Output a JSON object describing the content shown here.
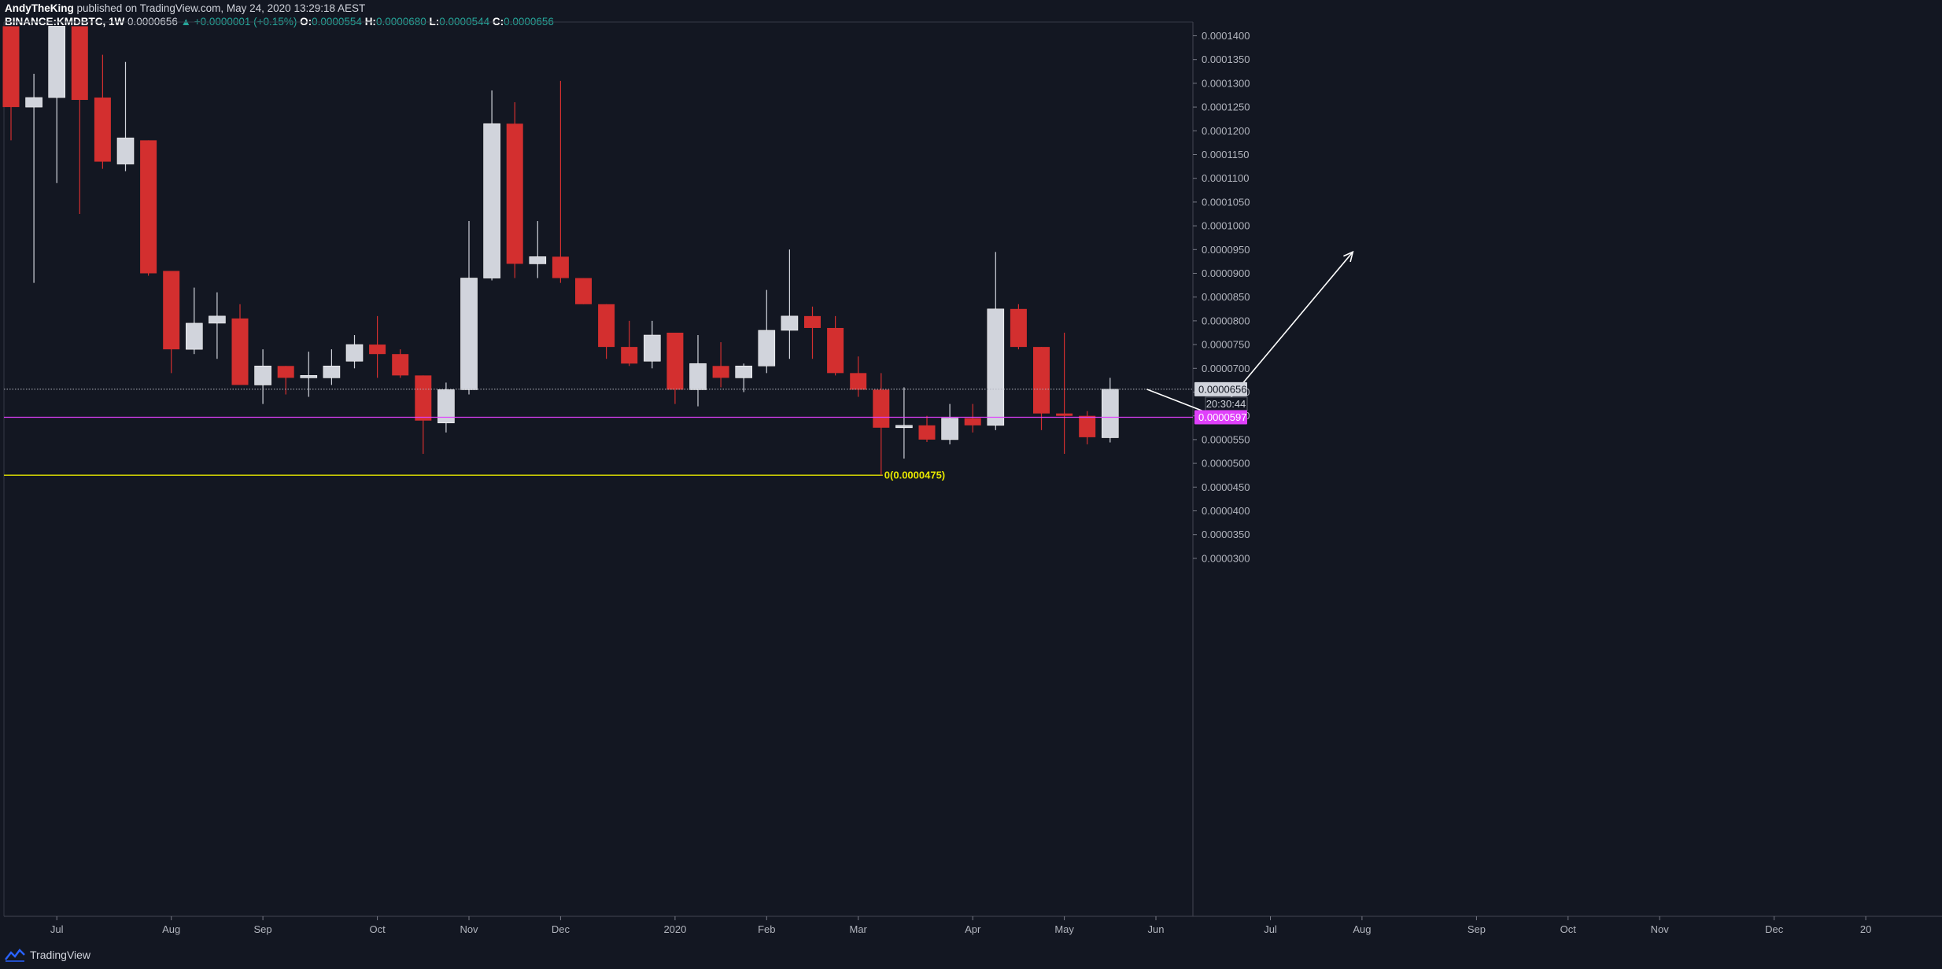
{
  "header": {
    "author": "AndyTheKing",
    "published": "published on TradingView.com, May 24, 2020 13:29:18 AEST",
    "symbol": "BINANCE:KMDBTC, 1W",
    "last": "0.0000656",
    "change": "▲ +0.0000001 (+0.15%)",
    "o_label": "O:",
    "o_value": "0.0000554",
    "h_label": "H:",
    "h_value": "0.0000680",
    "l_label": "L:",
    "l_value": "0.0000544",
    "c_label": "C:",
    "c_value": "0.0000656"
  },
  "footer": {
    "brand": "TradingView"
  },
  "colors": {
    "background": "#131722",
    "up": "#d1d4dc",
    "down": "#d32f2f",
    "support": "#e040fb",
    "fib": "#e6e600",
    "last_price_line": "#b2b5be"
  },
  "chart_data": {
    "type": "candlestick",
    "timeframe": "1W",
    "ylim": [
      2.73e-05,
      0.0001422
    ],
    "y_ticks": [
      "0.0001400",
      "0.0001350",
      "0.0001300",
      "0.0001250",
      "0.0001200",
      "0.0001150",
      "0.0001100",
      "0.0001050",
      "0.0001000",
      "0.0000950",
      "0.0000900",
      "0.0000850",
      "0.0000800",
      "0.0000750",
      "0.0000700",
      "0.0000650",
      "0.0000600",
      "0.0000550",
      "0.0000500",
      "0.0000450",
      "0.0000400",
      "0.0000350",
      "0.0000300"
    ],
    "x_ticks": [
      {
        "label": "Jul",
        "week": 2
      },
      {
        "label": "Aug",
        "week": 7
      },
      {
        "label": "Sep",
        "week": 11
      },
      {
        "label": "Oct",
        "week": 16
      },
      {
        "label": "Nov",
        "week": 20
      },
      {
        "label": "Dec",
        "week": 24
      },
      {
        "label": "2020",
        "week": 29
      },
      {
        "label": "Feb",
        "week": 33
      },
      {
        "label": "Mar",
        "week": 37
      },
      {
        "label": "Apr",
        "week": 42
      },
      {
        "label": "May",
        "week": 46
      },
      {
        "label": "Jun",
        "week": 50
      },
      {
        "label": "Jul",
        "week": 55
      },
      {
        "label": "Aug",
        "week": 59
      },
      {
        "label": "Sep",
        "week": 64
      },
      {
        "label": "Oct",
        "week": 68
      },
      {
        "label": "Nov",
        "week": 72
      },
      {
        "label": "Dec",
        "week": 77
      },
      {
        "label": "20",
        "week": 81
      }
    ],
    "candles": [
      {
        "o": 0.000142,
        "h": 0.000142,
        "l": 0.000118,
        "c": 0.000125
      },
      {
        "o": 0.000125,
        "h": 0.000132,
        "l": 8.8e-05,
        "c": 0.000127
      },
      {
        "o": 0.000127,
        "h": 0.000142,
        "l": 0.000109,
        "c": 0.000142
      },
      {
        "o": 0.000142,
        "h": 0.000142,
        "l": 0.0001025,
        "c": 0.0001265
      },
      {
        "o": 0.000127,
        "h": 0.000136,
        "l": 0.000112,
        "c": 0.0001135
      },
      {
        "o": 0.000113,
        "h": 0.0001345,
        "l": 0.0001115,
        "c": 0.0001185
      },
      {
        "o": 0.000118,
        "h": 0.000118,
        "l": 8.95e-05,
        "c": 9e-05
      },
      {
        "o": 9.05e-05,
        "h": 9.05e-05,
        "l": 6.9e-05,
        "c": 7.4e-05
      },
      {
        "o": 7.4e-05,
        "h": 8.7e-05,
        "l": 7.3e-05,
        "c": 7.95e-05
      },
      {
        "o": 7.95e-05,
        "h": 8.6e-05,
        "l": 7.2e-05,
        "c": 8.1e-05
      },
      {
        "o": 8.05e-05,
        "h": 8.35e-05,
        "l": 6.7e-05,
        "c": 6.65e-05
      },
      {
        "o": 6.65e-05,
        "h": 7.4e-05,
        "l": 6.25e-05,
        "c": 7.05e-05
      },
      {
        "o": 7.05e-05,
        "h": 7.05e-05,
        "l": 6.45e-05,
        "c": 6.8e-05
      },
      {
        "o": 6.8e-05,
        "h": 7.35e-05,
        "l": 6.4e-05,
        "c": 6.85e-05
      },
      {
        "o": 6.8e-05,
        "h": 7.4e-05,
        "l": 6.65e-05,
        "c": 7.05e-05
      },
      {
        "o": 7.15e-05,
        "h": 7.7e-05,
        "l": 7e-05,
        "c": 7.5e-05
      },
      {
        "o": 7.5e-05,
        "h": 8.1e-05,
        "l": 6.8e-05,
        "c": 7.3e-05
      },
      {
        "o": 7.3e-05,
        "h": 7.4e-05,
        "l": 6.8e-05,
        "c": 6.85e-05
      },
      {
        "o": 6.85e-05,
        "h": 6.85e-05,
        "l": 5.2e-05,
        "c": 5.9e-05
      },
      {
        "o": 5.85e-05,
        "h": 6.7e-05,
        "l": 5.65e-05,
        "c": 6.55e-05
      },
      {
        "o": 6.55e-05,
        "h": 0.000101,
        "l": 6.45e-05,
        "c": 8.9e-05
      },
      {
        "o": 8.9e-05,
        "h": 0.0001285,
        "l": 8.85e-05,
        "c": 0.0001215
      },
      {
        "o": 0.0001215,
        "h": 0.000126,
        "l": 8.9e-05,
        "c": 9.2e-05
      },
      {
        "o": 9.2e-05,
        "h": 0.000101,
        "l": 8.9e-05,
        "c": 9.35e-05
      },
      {
        "o": 9.35e-05,
        "h": 0.0001305,
        "l": 8.8e-05,
        "c": 8.9e-05
      },
      {
        "o": 8.9e-05,
        "h": 8.9e-05,
        "l": 8.35e-05,
        "c": 8.35e-05
      },
      {
        "o": 8.35e-05,
        "h": 8.35e-05,
        "l": 7.2e-05,
        "c": 7.45e-05
      },
      {
        "o": 7.45e-05,
        "h": 8e-05,
        "l": 7.05e-05,
        "c": 7.1e-05
      },
      {
        "o": 7.15e-05,
        "h": 8e-05,
        "l": 7e-05,
        "c": 7.7e-05
      },
      {
        "o": 7.75e-05,
        "h": 7.75e-05,
        "l": 6.25e-05,
        "c": 6.55e-05
      },
      {
        "o": 6.55e-05,
        "h": 7.7e-05,
        "l": 6.2e-05,
        "c": 7.1e-05
      },
      {
        "o": 7.05e-05,
        "h": 7.55e-05,
        "l": 6.6e-05,
        "c": 6.8e-05
      },
      {
        "o": 6.8e-05,
        "h": 7.1e-05,
        "l": 6.5e-05,
        "c": 7.05e-05
      },
      {
        "o": 7.05e-05,
        "h": 8.65e-05,
        "l": 6.9e-05,
        "c": 7.8e-05
      },
      {
        "o": 7.8e-05,
        "h": 9.5e-05,
        "l": 7.2e-05,
        "c": 8.1e-05
      },
      {
        "o": 8.1e-05,
        "h": 8.3e-05,
        "l": 7.2e-05,
        "c": 7.85e-05
      },
      {
        "o": 7.85e-05,
        "h": 8.1e-05,
        "l": 6.85e-05,
        "c": 6.9e-05
      },
      {
        "o": 6.9e-05,
        "h": 7.25e-05,
        "l": 6.4e-05,
        "c": 6.55e-05
      },
      {
        "o": 6.55e-05,
        "h": 6.9e-05,
        "l": 4.75e-05,
        "c": 5.75e-05
      },
      {
        "o": 5.75e-05,
        "h": 6.6e-05,
        "l": 5.1e-05,
        "c": 5.8e-05
      },
      {
        "o": 5.8e-05,
        "h": 6e-05,
        "l": 5.45e-05,
        "c": 5.5e-05
      },
      {
        "o": 5.5e-05,
        "h": 6.25e-05,
        "l": 5.4e-05,
        "c": 5.95e-05
      },
      {
        "o": 5.95e-05,
        "h": 6.25e-05,
        "l": 5.65e-05,
        "c": 5.8e-05
      },
      {
        "o": 5.8e-05,
        "h": 9.45e-05,
        "l": 5.7e-05,
        "c": 8.25e-05
      },
      {
        "o": 8.25e-05,
        "h": 8.35e-05,
        "l": 7.4e-05,
        "c": 7.45e-05
      },
      {
        "o": 7.45e-05,
        "h": 7.45e-05,
        "l": 5.7e-05,
        "c": 6.05e-05
      },
      {
        "o": 6.05e-05,
        "h": 7.75e-05,
        "l": 5.2e-05,
        "c": 6e-05
      },
      {
        "o": 6e-05,
        "h": 6.1e-05,
        "l": 5.4e-05,
        "c": 5.55e-05
      },
      {
        "o": 5.54e-05,
        "h": 6.8e-05,
        "l": 5.44e-05,
        "c": 6.56e-05
      }
    ],
    "last_price": {
      "value": 6.56e-05,
      "label": "0.0000656",
      "countdown": "20:30:44"
    },
    "support_line": {
      "value": 5.97e-05,
      "label": "0.0000597"
    },
    "fib_line": {
      "value": 4.75e-05,
      "label": "0(0.0000475)"
    },
    "projection_path": [
      {
        "week": 49.6,
        "price": 6.56e-05
      },
      {
        "week": 52.6,
        "price": 6e-05
      },
      {
        "week": 58.6,
        "price": 9.45e-05
      }
    ]
  }
}
